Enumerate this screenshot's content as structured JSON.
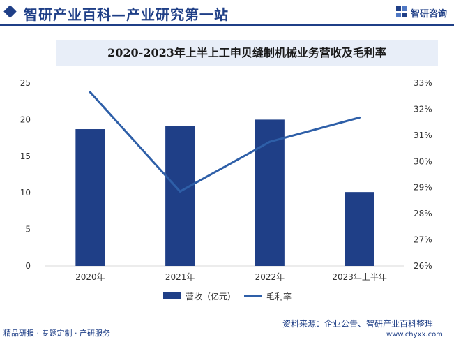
{
  "header": {
    "site_title": "智研产业百科—产业研究第一站",
    "logo_text": "智研咨询",
    "logo_icon": "zhiyan-logo-icon"
  },
  "legend": {
    "revenue": "营收（亿元）",
    "margin": "毛利率"
  },
  "footer": {
    "left": "精品研报 · 专题定制 · 产研服务",
    "source": "资料来源：企业公告、智研产业百科整理",
    "url": "www.chyxx.com"
  },
  "colors": {
    "bar": "#1f3f87",
    "line": "#2e5fa8",
    "brand": "#1f3f87"
  },
  "chart_data": {
    "type": "bar",
    "title": "2020-2023年上半上工申贝缝制机械业务营收及毛利率",
    "categories": [
      "2020年",
      "2021年",
      "2022年",
      "2023年上半年"
    ],
    "series": [
      {
        "name": "营收（亿元）",
        "type": "bar",
        "axis": "left",
        "values": [
          18.7,
          19.1,
          20.0,
          10.1
        ]
      },
      {
        "name": "毛利率",
        "type": "line",
        "axis": "right",
        "values": [
          32.65,
          28.85,
          30.75,
          31.68
        ]
      }
    ],
    "y_left": {
      "range": [
        0,
        25
      ],
      "ticks": [
        "0",
        "5",
        "10",
        "15",
        "20",
        "25"
      ]
    },
    "y_right": {
      "range": [
        26,
        33
      ],
      "ticks": [
        "26%",
        "27%",
        "28%",
        "29%",
        "30%",
        "31%",
        "32%",
        "33%"
      ]
    },
    "grid": false,
    "legend_position": "bottom"
  }
}
